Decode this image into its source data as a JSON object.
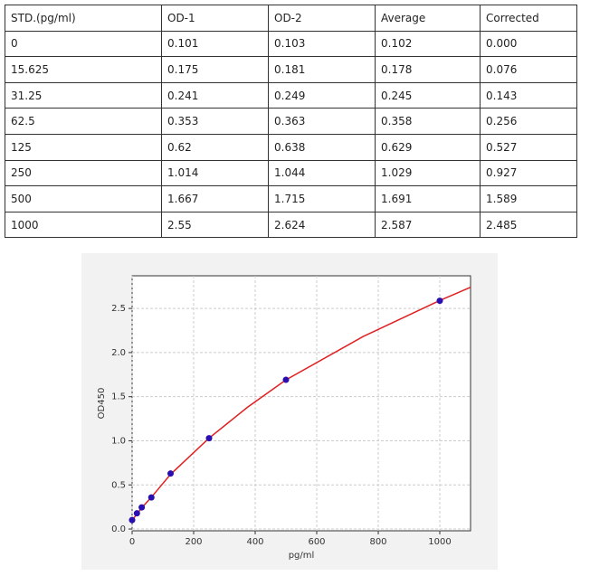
{
  "table": {
    "header": [
      "STD.(pg/ml)",
      "OD-1",
      "OD-2",
      "Average",
      "Corrected"
    ],
    "rows": [
      [
        "0",
        "0.101",
        "0.103",
        "0.102",
        "0.000"
      ],
      [
        "15.625",
        "0.175",
        "0.181",
        "0.178",
        "0.076"
      ],
      [
        "31.25",
        "0.241",
        "0.249",
        "0.245",
        "0.143"
      ],
      [
        "62.5",
        "0.353",
        "0.363",
        "0.358",
        "0.256"
      ],
      [
        "125",
        "0.62",
        "0.638",
        "0.629",
        "0.527"
      ],
      [
        "250",
        "1.014",
        "1.044",
        "1.029",
        "0.927"
      ],
      [
        "500",
        "1.667",
        "1.715",
        "1.691",
        "1.589"
      ],
      [
        "1000",
        "2.55",
        "2.624",
        "2.587",
        "2.485"
      ]
    ]
  },
  "chart_data": {
    "type": "scatter",
    "xlabel": "pg/ml",
    "ylabel": "OD450",
    "x": [
      0,
      15.625,
      31.25,
      62.5,
      125,
      250,
      500,
      1000
    ],
    "values": [
      0.102,
      0.178,
      0.245,
      0.358,
      0.629,
      1.029,
      1.691,
      2.587
    ],
    "color": "#2a0fb0",
    "fit": {
      "color": "#e02020",
      "x": [
        0,
        15.625,
        31.25,
        62.5,
        125,
        250,
        375,
        500,
        750,
        1000,
        1100
      ],
      "values": [
        0.1,
        0.17,
        0.24,
        0.36,
        0.62,
        1.03,
        1.38,
        1.69,
        2.18,
        2.59,
        2.74
      ]
    },
    "xlim": [
      0,
      1100
    ],
    "xticks": [
      0,
      200,
      400,
      600,
      800,
      1000
    ],
    "ylim": [
      -0.02,
      2.87
    ],
    "yticks": [
      {
        "value": 0,
        "label": "0.0"
      },
      0.5,
      {
        "value": 1,
        "label": "1.0"
      },
      1.5,
      {
        "value": 2,
        "label": "2.0"
      },
      2.5
    ],
    "grid": true
  }
}
